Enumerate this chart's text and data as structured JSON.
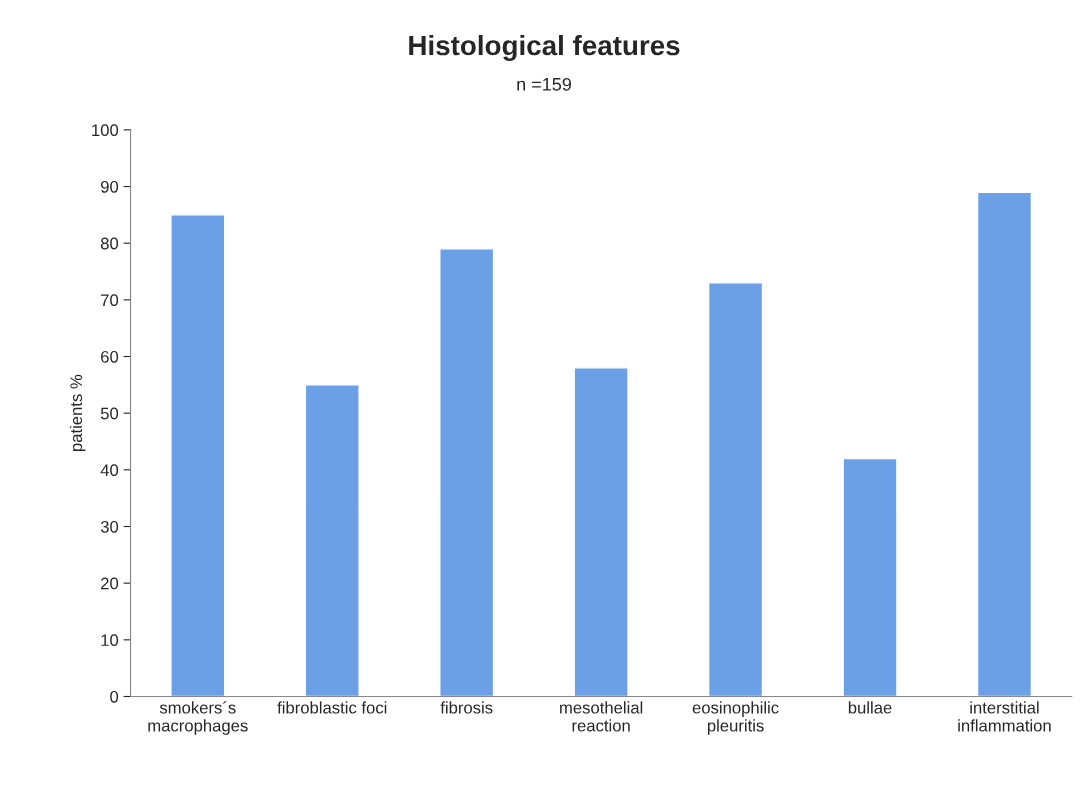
{
  "chart_data": {
    "type": "bar",
    "title": "Histological features",
    "subtitle": "n =159",
    "ylabel": "patients %",
    "categories": [
      "smokers´s\nmacrophages",
      "fibroblastic foci",
      "fibrosis",
      "mesothelial\nreaction",
      "eosinophilic\npleuritis",
      "bullae",
      "interstitial\ninflammation"
    ],
    "values": [
      85,
      55,
      79,
      58,
      73,
      42,
      89
    ],
    "color": "#6b9fe6",
    "ylim": [
      0,
      100
    ],
    "yticks": [
      0,
      10,
      20,
      30,
      40,
      50,
      60,
      70,
      80,
      90,
      100
    ],
    "grid": false
  }
}
